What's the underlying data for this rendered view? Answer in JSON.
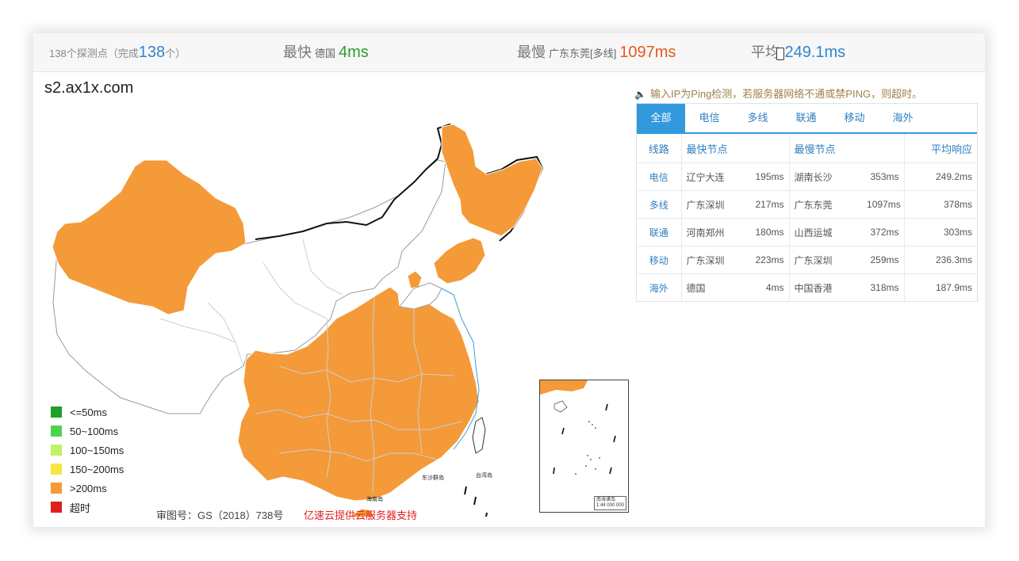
{
  "summary": {
    "probe_prefix": "138个探测点（完成",
    "probe_done": "138",
    "probe_suffix": "个）",
    "fastest_label": "最快",
    "fastest_location": "德国",
    "fastest_value": "4ms",
    "slowest_label": "最慢",
    "slowest_location": "广东东莞[多线]",
    "slowest_value": "1097ms",
    "average_label": "平均",
    "average_value": "249.1ms"
  },
  "domain": "s2.ax1x.com",
  "notice": "输入IP为Ping检测，若服务器网络不通或禁PING，则超时。",
  "tabs": [
    "全部",
    "电信",
    "多线",
    "联通",
    "移动",
    "海外"
  ],
  "table": {
    "headers": [
      "线路",
      "最快节点",
      "最慢节点",
      "平均响应"
    ],
    "rows": [
      {
        "line": "电信",
        "fast_node": "辽宁大连",
        "fast_ms": "195ms",
        "slow_node": "湖南长沙",
        "slow_ms": "353ms",
        "avg": "249.2ms"
      },
      {
        "line": "多线",
        "fast_node": "广东深圳",
        "fast_ms": "217ms",
        "slow_node": "广东东莞",
        "slow_ms": "1097ms",
        "avg": "378ms"
      },
      {
        "line": "联通",
        "fast_node": "河南郑州",
        "fast_ms": "180ms",
        "slow_node": "山西运城",
        "slow_ms": "372ms",
        "avg": "303ms"
      },
      {
        "line": "移动",
        "fast_node": "广东深圳",
        "fast_ms": "223ms",
        "slow_node": "广东深圳",
        "slow_ms": "259ms",
        "avg": "236.3ms"
      },
      {
        "line": "海外",
        "fast_node": "德国",
        "fast_ms": "4ms",
        "slow_node": "中国香港",
        "slow_ms": "318ms",
        "avg": "187.9ms"
      }
    ]
  },
  "legend": [
    {
      "label": "<=50ms",
      "color": "#1f9e2a"
    },
    {
      "label": "50~100ms",
      "color": "#4fd34f"
    },
    {
      "label": "100~150ms",
      "color": "#c2f066"
    },
    {
      "label": "150~200ms",
      "color": "#f5e642"
    },
    {
      "label": ">200ms",
      "color": "#f49a38"
    },
    {
      "label": "超时",
      "color": "#e01e1e"
    }
  ],
  "map_labels": {
    "hainan": "海南岛",
    "taiwan": "台湾岛",
    "dongsha": "东沙群岛",
    "inset_title": "南海诸岛",
    "inset_scale": "1:44 000 000"
  },
  "footer": {
    "approval": "审图号：GS（2018）738号",
    "sponsor": "亿速云提供云服务器支持"
  },
  "colors": {
    "accent": "#3399dd",
    "map_fill": "#f49a38",
    "timeout": "#e01e1e"
  }
}
